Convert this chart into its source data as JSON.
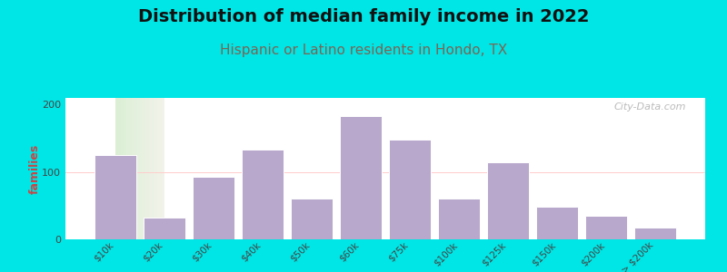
{
  "title": "Distribution of median family income in 2022",
  "subtitle": "Hispanic or Latino residents in Hondo, TX",
  "ylabel": "families",
  "categories": [
    "$10k",
    "$20k",
    "$30k",
    "$40k",
    "$50k",
    "$60k",
    "$75k",
    "$100k",
    "$125k",
    "$150k",
    "$200k",
    "> $200k"
  ],
  "values": [
    125,
    32,
    93,
    133,
    60,
    183,
    148,
    60,
    115,
    48,
    35,
    18
  ],
  "bar_color": "#b8a8cc",
  "bar_edge_color": "#ffffff",
  "background_outer": "#00e5e5",
  "background_plot_left": "#daefd4",
  "background_plot_right": "#f2f2ea",
  "ylim": [
    0,
    210
  ],
  "yticks": [
    0,
    100,
    200
  ],
  "title_fontsize": 14,
  "subtitle_fontsize": 11,
  "subtitle_color": "#7a6655",
  "ylabel_fontsize": 9,
  "ylabel_color": "#cc4444",
  "watermark": "City-Data.com",
  "watermark_color": "#aaaaaa"
}
